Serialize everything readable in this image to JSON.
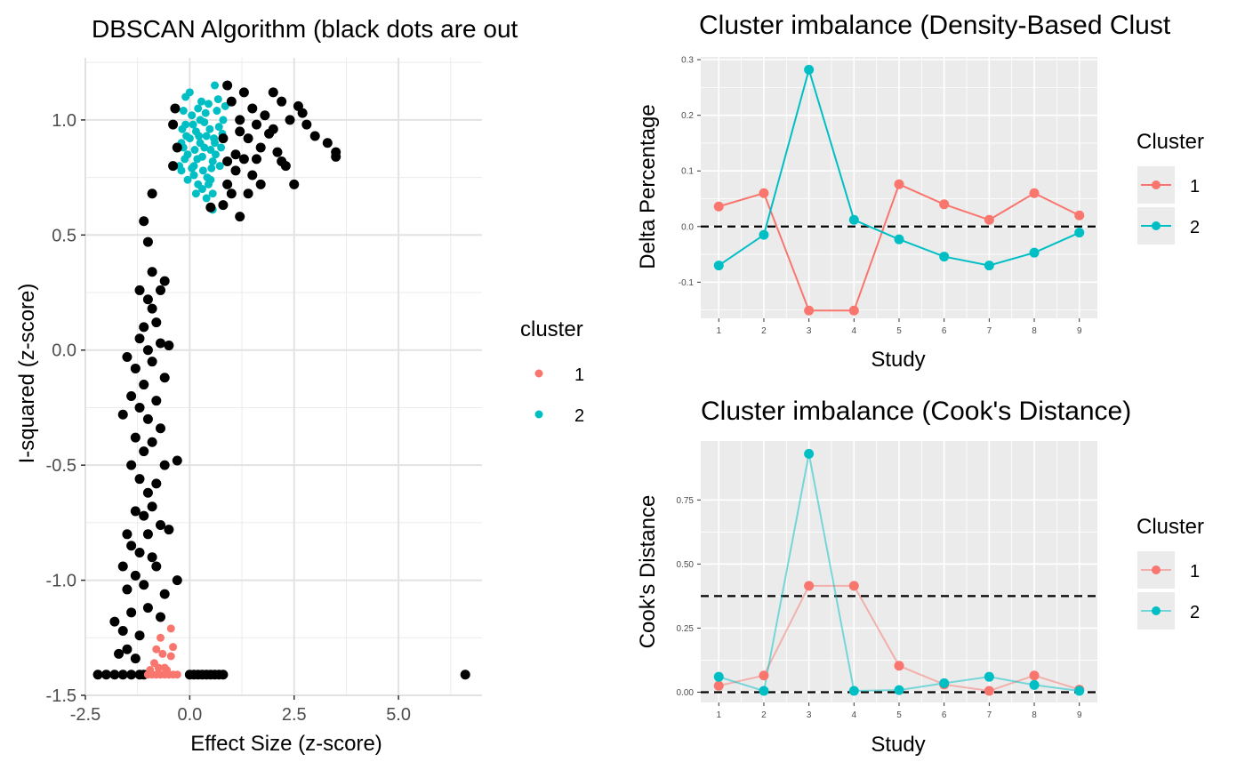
{
  "chart_data": [
    {
      "type": "scatter",
      "title": "DBSCAN Algorithm (black dots are out",
      "xlabel": "Effect Size (z-score)",
      "ylabel": "I-squared (z-score)",
      "xlim": [
        -2.5,
        7.0
      ],
      "ylim": [
        -1.5,
        1.27
      ],
      "x_ticks": [
        -2.5,
        0.0,
        2.5,
        5.0
      ],
      "x_tick_labels": [
        "-2.5",
        "0.0",
        "2.5",
        "5.0"
      ],
      "y_ticks": [
        -1.5,
        -1.0,
        -0.5,
        0.0,
        0.5,
        1.0
      ],
      "y_tick_labels": [
        "-1.5",
        "-1.0",
        "-0.5",
        "0.0",
        "0.5",
        "1.0"
      ],
      "grid": true,
      "background": "#ffffff",
      "legend": {
        "title": "cluster",
        "position": "right",
        "entries": [
          "1",
          "2"
        ]
      },
      "colors": {
        "noise": "#000000",
        "1": "#F8766D",
        "2": "#00BFC4"
      },
      "series": [
        {
          "name": "1",
          "color": "#F8766D",
          "points": [
            [
              -1.0,
              -1.41
            ],
            [
              -0.9,
              -1.41
            ],
            [
              -0.8,
              -1.41
            ],
            [
              -0.7,
              -1.41
            ],
            [
              -0.6,
              -1.41
            ],
            [
              -0.5,
              -1.41
            ],
            [
              -0.4,
              -1.41
            ],
            [
              -0.3,
              -1.41
            ],
            [
              -0.95,
              -1.39
            ],
            [
              -0.75,
              -1.38
            ],
            [
              -0.55,
              -1.39
            ],
            [
              -0.85,
              -1.36
            ],
            [
              -0.6,
              -1.38
            ],
            [
              -0.45,
              -1.33
            ],
            [
              -0.4,
              -1.29
            ],
            [
              -0.65,
              -1.32
            ],
            [
              -0.8,
              -1.3
            ],
            [
              -0.7,
              -1.25
            ],
            [
              -0.45,
              -1.21
            ]
          ]
        },
        {
          "name": "2",
          "color": "#00BFC4",
          "points": [
            [
              -0.2,
              0.78
            ],
            [
              -0.15,
              0.88
            ],
            [
              -0.1,
              0.98
            ],
            [
              -0.05,
              0.85
            ],
            [
              0.0,
              0.92
            ],
            [
              0.05,
              1.02
            ],
            [
              0.1,
              0.8
            ],
            [
              0.15,
              0.95
            ],
            [
              0.2,
              1.05
            ],
            [
              0.25,
              0.9
            ],
            [
              0.3,
              0.84
            ],
            [
              0.35,
              0.99
            ],
            [
              0.4,
              0.93
            ],
            [
              0.45,
              1.07
            ],
            [
              0.5,
              0.87
            ],
            [
              0.55,
              0.82
            ],
            [
              -0.1,
              1.1
            ],
            [
              0.0,
              1.12
            ],
            [
              0.1,
              0.76
            ],
            [
              0.2,
              0.72
            ],
            [
              0.3,
              0.7
            ],
            [
              0.5,
              0.74
            ],
            [
              0.55,
              0.68
            ],
            [
              0.6,
              0.9
            ],
            [
              0.7,
              0.97
            ],
            [
              0.75,
              0.88
            ],
            [
              0.8,
              1.0
            ],
            [
              0.65,
              1.04
            ],
            [
              -0.18,
              0.96
            ],
            [
              -0.12,
              0.83
            ],
            [
              0.05,
              0.79
            ],
            [
              0.12,
              0.87
            ],
            [
              0.22,
              0.93
            ],
            [
              0.32,
              0.78
            ],
            [
              0.42,
              0.75
            ],
            [
              0.48,
              0.96
            ],
            [
              0.58,
              0.92
            ],
            [
              0.28,
              1.08
            ],
            [
              0.38,
              1.03
            ],
            [
              0.08,
              0.98
            ],
            [
              -0.08,
              0.93
            ],
            [
              0.18,
              0.83
            ],
            [
              0.52,
              0.79
            ],
            [
              0.62,
              0.85
            ],
            [
              0.72,
              0.8
            ],
            [
              -0.05,
              0.74
            ],
            [
              0.15,
              0.68
            ],
            [
              0.4,
              0.66
            ],
            [
              0.55,
              0.61
            ],
            [
              0.45,
              0.72
            ],
            [
              0.35,
              0.88
            ],
            [
              0.25,
              1.0
            ],
            [
              -0.15,
              1.04
            ],
            [
              0.68,
              1.09
            ],
            [
              0.78,
              0.94
            ],
            [
              -0.2,
              0.9
            ],
            [
              0.85,
              1.06
            ],
            [
              0.6,
              1.15
            ],
            [
              -0.25,
              0.8
            ]
          ]
        },
        {
          "name": "noise",
          "color": "#000000",
          "points": [
            [
              -2.2,
              -1.41
            ],
            [
              -2.0,
              -1.41
            ],
            [
              -1.8,
              -1.41
            ],
            [
              -1.6,
              -1.41
            ],
            [
              -1.4,
              -1.41
            ],
            [
              -1.2,
              -1.41
            ],
            [
              -1.1,
              -1.41
            ],
            [
              0.0,
              -1.41
            ],
            [
              0.1,
              -1.41
            ],
            [
              0.2,
              -1.41
            ],
            [
              0.3,
              -1.41
            ],
            [
              0.4,
              -1.41
            ],
            [
              0.5,
              -1.41
            ],
            [
              0.6,
              -1.41
            ],
            [
              0.7,
              -1.41
            ],
            [
              0.8,
              -1.41
            ],
            [
              6.6,
              -1.41
            ],
            [
              -1.7,
              -1.32
            ],
            [
              -1.5,
              -1.3
            ],
            [
              -1.3,
              -1.34
            ],
            [
              -1.6,
              -1.22
            ],
            [
              -1.2,
              -1.24
            ],
            [
              -1.8,
              -1.18
            ],
            [
              -1.4,
              -1.14
            ],
            [
              -1.0,
              -1.12
            ],
            [
              -0.7,
              -1.16
            ],
            [
              -0.6,
              -1.06
            ],
            [
              -1.5,
              -1.04
            ],
            [
              -1.1,
              -1.02
            ],
            [
              -1.3,
              -0.98
            ],
            [
              -0.8,
              -0.94
            ],
            [
              -0.3,
              -1.0
            ],
            [
              -1.6,
              -0.94
            ],
            [
              -0.9,
              -0.9
            ],
            [
              -1.2,
              -0.88
            ],
            [
              -1.4,
              -0.85
            ],
            [
              -1.0,
              -0.8
            ],
            [
              -0.5,
              -0.78
            ],
            [
              -1.5,
              -0.8
            ],
            [
              -0.7,
              -0.76
            ],
            [
              -1.1,
              -0.72
            ],
            [
              -1.3,
              -0.7
            ],
            [
              -0.9,
              -0.68
            ],
            [
              -1.0,
              -0.62
            ],
            [
              -0.8,
              -0.58
            ],
            [
              -1.2,
              -0.56
            ],
            [
              -1.4,
              -0.5
            ],
            [
              -0.6,
              -0.5
            ],
            [
              -0.3,
              -0.48
            ],
            [
              -1.1,
              -0.44
            ],
            [
              -0.9,
              -0.4
            ],
            [
              -1.3,
              -0.38
            ],
            [
              -0.7,
              -0.34
            ],
            [
              -1.0,
              -0.3
            ],
            [
              -1.6,
              -0.28
            ],
            [
              -1.2,
              -0.25
            ],
            [
              -0.8,
              -0.22
            ],
            [
              -1.4,
              -0.2
            ],
            [
              -1.1,
              -0.15
            ],
            [
              -0.6,
              -0.12
            ],
            [
              -1.3,
              -0.08
            ],
            [
              -0.9,
              -0.05
            ],
            [
              -1.5,
              -0.03
            ],
            [
              -1.0,
              0.0
            ],
            [
              -0.7,
              0.03
            ],
            [
              -1.2,
              0.05
            ],
            [
              -0.5,
              0.02
            ],
            [
              -1.1,
              0.1
            ],
            [
              -0.8,
              0.12
            ],
            [
              -0.9,
              0.18
            ],
            [
              -1.0,
              0.22
            ],
            [
              -0.7,
              0.26
            ],
            [
              -1.2,
              0.26
            ],
            [
              -0.6,
              0.3
            ],
            [
              -0.9,
              0.34
            ],
            [
              -1.0,
              0.47
            ],
            [
              -1.1,
              0.56
            ],
            [
              -0.9,
              0.68
            ],
            [
              -0.4,
              0.98
            ],
            [
              -0.3,
              0.88
            ],
            [
              -0.4,
              0.8
            ],
            [
              -0.35,
              1.05
            ],
            [
              0.5,
              0.62
            ],
            [
              0.8,
              0.63
            ],
            [
              1.0,
              0.68
            ],
            [
              1.2,
              0.58
            ],
            [
              0.9,
              0.72
            ],
            [
              1.1,
              0.78
            ],
            [
              1.3,
              0.83
            ],
            [
              1.5,
              0.76
            ],
            [
              1.7,
              0.88
            ],
            [
              1.4,
              0.92
            ],
            [
              1.6,
              0.98
            ],
            [
              1.8,
              1.02
            ],
            [
              1.2,
              1.0
            ],
            [
              1.0,
              1.08
            ],
            [
              0.9,
              1.15
            ],
            [
              1.3,
              1.12
            ],
            [
              1.5,
              1.05
            ],
            [
              1.9,
              0.94
            ],
            [
              2.1,
              0.86
            ],
            [
              2.3,
              0.8
            ],
            [
              2.0,
              1.12
            ],
            [
              2.2,
              1.08
            ],
            [
              2.4,
              1.0
            ],
            [
              2.6,
              1.06
            ],
            [
              2.8,
              0.98
            ],
            [
              3.0,
              0.93
            ],
            [
              3.3,
              0.9
            ],
            [
              3.5,
              0.86
            ],
            [
              3.5,
              0.84
            ],
            [
              2.5,
              0.72
            ],
            [
              2.2,
              0.82
            ],
            [
              1.7,
              0.72
            ],
            [
              1.4,
              0.68
            ],
            [
              1.1,
              0.85
            ],
            [
              0.8,
              0.92
            ],
            [
              0.9,
              0.82
            ],
            [
              1.6,
              0.83
            ],
            [
              2.0,
              0.96
            ],
            [
              2.7,
              1.03
            ],
            [
              1.2,
              0.95
            ]
          ]
        }
      ]
    },
    {
      "type": "line",
      "title": "Cluster imbalance (Density-Based Clust",
      "xlabel": "Study",
      "ylabel": "Delta Percentage",
      "x": [
        1,
        2,
        3,
        4,
        5,
        6,
        7,
        8,
        9
      ],
      "x_tick_labels": [
        "1",
        "2",
        "3",
        "4",
        "5",
        "6",
        "7",
        "8",
        "9"
      ],
      "ylim": [
        -0.165,
        0.305
      ],
      "y_ticks": [
        -0.1,
        0.0,
        0.1,
        0.2,
        0.3
      ],
      "y_tick_labels": [
        "-0.1",
        "0.0",
        "0.1",
        "0.2",
        "0.3"
      ],
      "hline": [
        0.0
      ],
      "grid": true,
      "background": "#EBEBEB",
      "legend": {
        "title": "Cluster",
        "position": "right"
      },
      "series": [
        {
          "name": "1",
          "color": "#F8766D",
          "values": [
            0.036,
            0.06,
            -0.151,
            -0.151,
            0.076,
            0.04,
            0.012,
            0.06,
            0.02
          ]
        },
        {
          "name": "2",
          "color": "#00BFC4",
          "values": [
            -0.07,
            -0.015,
            0.282,
            0.012,
            -0.023,
            -0.054,
            -0.07,
            -0.047,
            -0.011
          ]
        }
      ]
    },
    {
      "type": "line",
      "title": "Cluster imbalance (Cook's Distance)",
      "xlabel": "Study",
      "ylabel": "Cook's Distance",
      "x": [
        1,
        2,
        3,
        4,
        5,
        6,
        7,
        8,
        9
      ],
      "x_tick_labels": [
        "1",
        "2",
        "3",
        "4",
        "5",
        "6",
        "7",
        "8",
        "9"
      ],
      "ylim": [
        -0.04,
        0.98
      ],
      "y_ticks": [
        0.0,
        0.25,
        0.5,
        0.75
      ],
      "y_tick_labels": [
        "0.00",
        "0.25",
        "0.50",
        "0.75"
      ],
      "hline": [
        0.375,
        0.0
      ],
      "grid": true,
      "background": "#EBEBEB",
      "legend": {
        "title": "Cluster",
        "position": "right"
      },
      "series": [
        {
          "name": "1",
          "color": "#F8766D",
          "values": [
            0.025,
            0.065,
            0.415,
            0.415,
            0.103,
            0.03,
            0.005,
            0.065,
            0.01
          ]
        },
        {
          "name": "2",
          "color": "#00BFC4",
          "values": [
            0.06,
            0.005,
            0.93,
            0.005,
            0.008,
            0.035,
            0.06,
            0.028,
            0.005
          ]
        }
      ]
    }
  ]
}
